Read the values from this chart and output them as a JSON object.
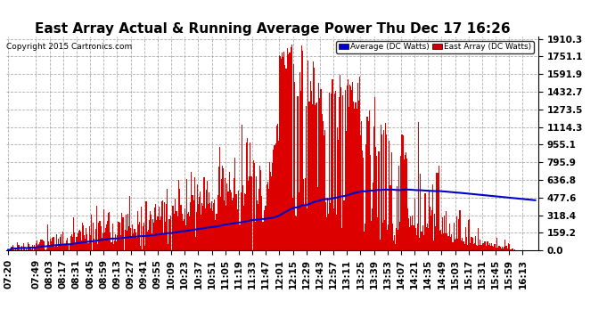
{
  "title": "East Array Actual & Running Average Power Thu Dec 17 16:26",
  "copyright": "Copyright 2015 Cartronics.com",
  "ylabel_right_ticks": [
    0.0,
    159.2,
    318.4,
    477.6,
    636.8,
    795.9,
    955.1,
    1114.3,
    1273.5,
    1432.7,
    1591.9,
    1751.1,
    1910.3
  ],
  "ymax": 1910.3,
  "ymin": 0.0,
  "legend_avg_label": "Average (DC Watts)",
  "legend_east_label": "East Array (DC Watts)",
  "legend_avg_bg": "#0000cc",
  "legend_east_bg": "#cc0000",
  "bar_color": "#dd0000",
  "avg_line_color": "#0000cc",
  "background_color": "#ffffff",
  "grid_color": "#999999",
  "title_fontsize": 11,
  "tick_fontsize": 7.5,
  "tick_labels": [
    "07:20",
    "07:49",
    "08:03",
    "08:17",
    "08:31",
    "08:45",
    "08:59",
    "09:13",
    "09:27",
    "09:41",
    "09:55",
    "10:09",
    "10:23",
    "10:37",
    "10:51",
    "11:05",
    "11:19",
    "11:33",
    "11:47",
    "12:01",
    "12:15",
    "12:29",
    "12:43",
    "12:57",
    "13:11",
    "13:25",
    "13:39",
    "13:53",
    "14:07",
    "14:21",
    "14:35",
    "14:49",
    "15:03",
    "15:17",
    "15:31",
    "15:45",
    "15:59",
    "16:13"
  ]
}
